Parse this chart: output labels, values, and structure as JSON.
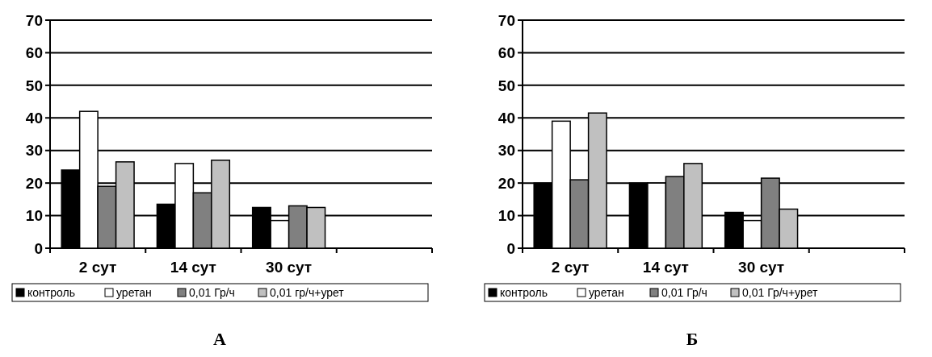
{
  "chart_data": [
    {
      "type": "bar",
      "categories": [
        "2 сут",
        "14 сут",
        "30 сут",
        null
      ],
      "ylim": [
        0,
        70
      ],
      "yticks": [
        0,
        10,
        20,
        30,
        40,
        50,
        60,
        70
      ],
      "grid": "y",
      "legend": "bottom",
      "annotations": [
        "А"
      ],
      "series": [
        {
          "name": "контроль",
          "color": "#000000",
          "values": [
            24,
            13.5,
            12.5,
            null
          ]
        },
        {
          "name": "уретан",
          "color": "#ffffff",
          "values": [
            42,
            26,
            8.5,
            null
          ]
        },
        {
          "name": "0,01 Гр/ч",
          "color": "#808080",
          "values": [
            19,
            17,
            13,
            null
          ]
        },
        {
          "name": "0,01 гр/ч+урет",
          "color": "#c0c0c0",
          "values": [
            26.5,
            27,
            12.5,
            null
          ]
        }
      ]
    },
    {
      "type": "bar",
      "categories": [
        "2 сут",
        "14 сут",
        "30 сут",
        null
      ],
      "ylim": [
        0,
        70
      ],
      "yticks": [
        0,
        10,
        20,
        30,
        40,
        50,
        60,
        70
      ],
      "grid": "y",
      "legend": "bottom",
      "annotations": [
        "Б"
      ],
      "series": [
        {
          "name": "контроль",
          "color": "#000000",
          "values": [
            20,
            20,
            11,
            null
          ]
        },
        {
          "name": "уретан",
          "color": "#ffffff",
          "values": [
            39,
            20,
            8.5,
            null
          ]
        },
        {
          "name": "0,01 Гр/ч",
          "color": "#808080",
          "values": [
            21,
            22,
            21.5,
            null
          ]
        },
        {
          "name": "0,01 Гр/ч+урет",
          "color": "#c0c0c0",
          "values": [
            41.5,
            26,
            12,
            null
          ]
        }
      ]
    }
  ]
}
